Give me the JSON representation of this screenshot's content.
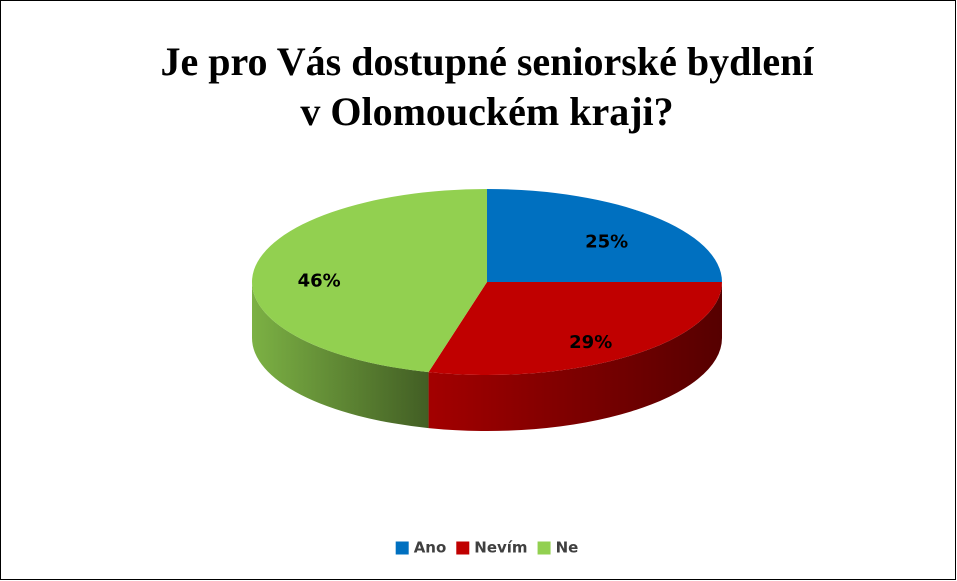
{
  "chart_data": {
    "type": "pie3d",
    "title": [
      "Je pro Vás dostupné seniorské bydlení",
      "v Olomouckém kraji?"
    ],
    "categories": [
      "Ano",
      "Nevím",
      "Ne"
    ],
    "values": [
      25,
      29,
      46
    ],
    "value_labels": [
      "25%",
      "29%",
      "46%"
    ],
    "colors": [
      "#0070c0",
      "#c00000",
      "#92d050"
    ],
    "legend": "bottom"
  }
}
